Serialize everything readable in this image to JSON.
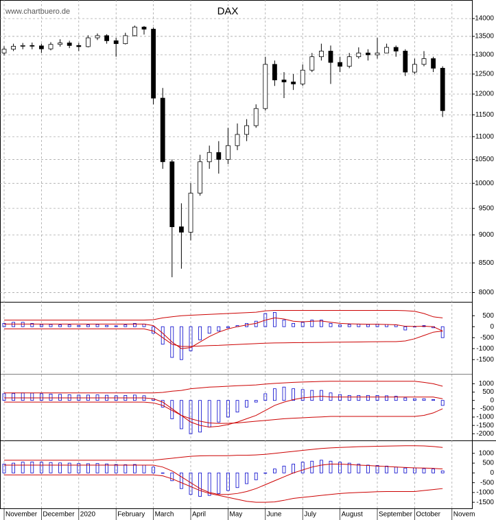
{
  "chart_data": [
    {
      "type": "candlestick",
      "title": "DAX",
      "source": "www.chartbuero.de",
      "log_scale": true,
      "grid": true,
      "up_color": "#ffffff",
      "down_color": "#000000",
      "open": [
        13050,
        13150,
        13230,
        13250,
        13240,
        13160,
        13280,
        13320,
        13250,
        13220,
        13460,
        13520,
        13380,
        13300,
        13520,
        13760,
        13700,
        11900,
        10450,
        9150,
        9050,
        9800,
        10450,
        10650,
        10500,
        10800,
        11050,
        11250,
        11650,
        12750,
        12350,
        12300,
        12250,
        12600,
        12950,
        13100,
        12800,
        12700,
        12950,
        13050,
        13000,
        13050,
        13200,
        13100,
        12550,
        12750,
        12900,
        12650,
        null
      ],
      "high": [
        13230,
        13300,
        13320,
        13330,
        13300,
        13340,
        13420,
        13380,
        13320,
        13530,
        13580,
        13560,
        13460,
        13600,
        13800,
        13790,
        13750,
        12150,
        10500,
        9600,
        10000,
        10600,
        10800,
        10900,
        11200,
        11300,
        11400,
        11750,
        12950,
        12850,
        12550,
        12500,
        12750,
        13050,
        13300,
        13250,
        12950,
        13050,
        13200,
        13150,
        13460,
        13300,
        13250,
        13150,
        12900,
        13100,
        12950,
        12700,
        null
      ],
      "low": [
        12980,
        13100,
        13150,
        13150,
        13050,
        13120,
        13220,
        13180,
        13100,
        13200,
        13400,
        13300,
        12950,
        13280,
        13500,
        13550,
        11750,
        10300,
        8255,
        8400,
        8900,
        9750,
        10300,
        10200,
        10400,
        10700,
        10900,
        11200,
        11600,
        12200,
        11900,
        12100,
        12200,
        12550,
        12850,
        12250,
        12550,
        12650,
        12900,
        12850,
        12900,
        13050,
        12950,
        12450,
        12500,
        12700,
        12550,
        11450,
        null
      ],
      "close": [
        13150,
        13230,
        13250,
        13240,
        13160,
        13280,
        13320,
        13250,
        13220,
        13460,
        13520,
        13380,
        13300,
        13520,
        13760,
        13700,
        11900,
        10450,
        9150,
        9050,
        9800,
        10450,
        10650,
        10500,
        10800,
        11050,
        11250,
        11650,
        12750,
        12350,
        12300,
        12250,
        12600,
        12950,
        13100,
        12800,
        12700,
        12950,
        13050,
        13000,
        13050,
        13200,
        13100,
        12550,
        12750,
        12900,
        12650,
        11600,
        null
      ],
      "ylim": [
        7850,
        14500
      ],
      "yticks": [
        8000,
        8500,
        9000,
        9500,
        10000,
        10500,
        11000,
        11500,
        12000,
        12500,
        13000,
        13500,
        14000
      ]
    },
    {
      "type": "indicator",
      "grid": false,
      "ylim": [
        -2150,
        1100
      ],
      "yticks": [
        500,
        0,
        -500,
        -1000,
        -1500
      ],
      "series": [
        {
          "kind": "bar",
          "color": "#0000cc",
          "values": [
            150,
            200,
            200,
            150,
            100,
            100,
            80,
            80,
            60,
            80,
            100,
            60,
            40,
            80,
            150,
            120,
            -300,
            -800,
            -1400,
            -1500,
            -1100,
            -600,
            -300,
            -200,
            -50,
            50,
            150,
            250,
            600,
            650,
            300,
            150,
            200,
            300,
            300,
            150,
            80,
            100,
            120,
            100,
            120,
            100,
            80,
            -150,
            0,
            50,
            -50,
            -500,
            null
          ]
        },
        {
          "kind": "line",
          "color": "#cc0000",
          "values": [
            300,
            300,
            300,
            300,
            300,
            300,
            300,
            300,
            300,
            300,
            300,
            300,
            300,
            300,
            300,
            300,
            320,
            400,
            450,
            500,
            520,
            540,
            560,
            580,
            600,
            620,
            640,
            660,
            720,
            740,
            740,
            740,
            740,
            740,
            740,
            740,
            740,
            740,
            740,
            740,
            740,
            740,
            740,
            730,
            700,
            600,
            450,
            400,
            null
          ]
        },
        {
          "kind": "line",
          "color": "#cc0000",
          "values": [
            -100,
            -100,
            -100,
            -100,
            -100,
            -100,
            -100,
            -100,
            -100,
            -100,
            -100,
            -100,
            -100,
            -100,
            -100,
            -100,
            -200,
            -500,
            -800,
            -900,
            -900,
            -880,
            -860,
            -850,
            -830,
            -810,
            -790,
            -770,
            -750,
            -740,
            -735,
            -730,
            -725,
            -720,
            -715,
            -710,
            -705,
            -700,
            -695,
            -690,
            -685,
            -680,
            -680,
            -650,
            -550,
            -400,
            -250,
            -200,
            null
          ]
        },
        {
          "kind": "line",
          "color": "#cc0000",
          "values": [
            120,
            120,
            120,
            120,
            120,
            120,
            120,
            120,
            120,
            120,
            120,
            120,
            120,
            120,
            120,
            120,
            50,
            -300,
            -700,
            -1000,
            -950,
            -700,
            -450,
            -250,
            -100,
            0,
            80,
            150,
            300,
            400,
            350,
            250,
            220,
            250,
            260,
            200,
            150,
            130,
            120,
            110,
            110,
            100,
            90,
            20,
            10,
            20,
            0,
            -200,
            null
          ]
        }
      ]
    },
    {
      "type": "indicator",
      "grid": false,
      "ylim": [
        -2400,
        1550
      ],
      "yticks": [
        1000,
        500,
        0,
        -500,
        -1000,
        -1500,
        -2000
      ],
      "series": [
        {
          "kind": "bar",
          "color": "#0000cc",
          "values": [
            400,
            420,
            450,
            440,
            400,
            380,
            360,
            340,
            320,
            320,
            330,
            310,
            280,
            300,
            320,
            280,
            100,
            -400,
            -1100,
            -1700,
            -2000,
            -1900,
            -1600,
            -1300,
            -1000,
            -700,
            -400,
            -100,
            400,
            700,
            800,
            700,
            650,
            600,
            600,
            450,
            350,
            300,
            300,
            300,
            300,
            280,
            250,
            150,
            100,
            100,
            50,
            -300,
            null
          ]
        },
        {
          "kind": "line",
          "color": "#cc0000",
          "values": [
            450,
            450,
            450,
            450,
            450,
            450,
            450,
            450,
            450,
            450,
            450,
            450,
            450,
            450,
            450,
            450,
            450,
            480,
            550,
            600,
            700,
            750,
            800,
            820,
            850,
            880,
            900,
            930,
            980,
            1020,
            1050,
            1080,
            1100,
            1120,
            1140,
            1150,
            1150,
            1150,
            1150,
            1150,
            1150,
            1150,
            1150,
            1150,
            1150,
            1080,
            1000,
            850,
            null
          ]
        },
        {
          "kind": "line",
          "color": "#cc0000",
          "values": [
            -100,
            -100,
            -100,
            -100,
            -100,
            -100,
            -100,
            -100,
            -100,
            -100,
            -100,
            -100,
            -100,
            -100,
            -100,
            -100,
            -150,
            -300,
            -600,
            -900,
            -1100,
            -1250,
            -1350,
            -1380,
            -1370,
            -1350,
            -1300,
            -1250,
            -1200,
            -1150,
            -1100,
            -1070,
            -1040,
            -1010,
            -990,
            -960,
            -960,
            -960,
            -960,
            -960,
            -960,
            -960,
            -960,
            -960,
            -960,
            -900,
            -750,
            -500,
            null
          ]
        },
        {
          "kind": "line",
          "color": "#cc0000",
          "values": [
            150,
            150,
            150,
            150,
            150,
            150,
            150,
            150,
            150,
            150,
            150,
            150,
            150,
            150,
            150,
            150,
            100,
            -100,
            -500,
            -900,
            -1300,
            -1500,
            -1600,
            -1550,
            -1450,
            -1300,
            -1100,
            -900,
            -600,
            -300,
            -100,
            50,
            150,
            200,
            250,
            200,
            200,
            200,
            200,
            200,
            200,
            200,
            200,
            200,
            200,
            200,
            200,
            100,
            null
          ]
        }
      ]
    },
    {
      "type": "indicator",
      "grid": false,
      "ylim": [
        -1810,
        1625
      ],
      "yticks": [
        1000,
        500,
        0,
        -500,
        -1000,
        -1500
      ],
      "categories": [
        "November",
        null,
        null,
        null,
        "December",
        null,
        null,
        null,
        "2020",
        null,
        null,
        null,
        "February",
        null,
        null,
        null,
        "March",
        null,
        null,
        null,
        "April",
        null,
        null,
        null,
        "May",
        null,
        null,
        null,
        "June",
        null,
        null,
        null,
        "July",
        null,
        null,
        null,
        "August",
        null,
        null,
        null,
        "September",
        null,
        null,
        null,
        "October",
        null,
        null,
        null,
        "Novem"
      ],
      "series": [
        {
          "kind": "bar",
          "color": "#0000cc",
          "values": [
            450,
            500,
            550,
            560,
            550,
            530,
            510,
            500,
            480,
            470,
            480,
            460,
            430,
            420,
            430,
            400,
            300,
            0,
            -400,
            -800,
            -1100,
            -1200,
            -1150,
            -1050,
            -900,
            -750,
            -550,
            -350,
            0,
            200,
            350,
            450,
            550,
            600,
            650,
            600,
            550,
            500,
            450,
            400,
            380,
            350,
            300,
            250,
            250,
            220,
            200,
            100,
            null
          ]
        },
        {
          "kind": "line",
          "color": "#cc0000",
          "values": [
            650,
            650,
            650,
            650,
            650,
            650,
            650,
            650,
            650,
            650,
            650,
            650,
            650,
            650,
            650,
            650,
            650,
            700,
            750,
            800,
            850,
            870,
            880,
            880,
            880,
            900,
            900,
            920,
            950,
            1000,
            1050,
            1100,
            1150,
            1200,
            1250,
            1280,
            1300,
            1320,
            1340,
            1350,
            1360,
            1370,
            1380,
            1390,
            1390,
            1380,
            1350,
            1300,
            null
          ]
        },
        {
          "kind": "line",
          "color": "#cc0000",
          "values": [
            -100,
            -100,
            -100,
            -100,
            -100,
            -100,
            -100,
            -100,
            -100,
            -100,
            -100,
            -100,
            -100,
            -100,
            -100,
            -100,
            -100,
            -150,
            -300,
            -500,
            -700,
            -900,
            -1050,
            -1150,
            -1250,
            -1350,
            -1450,
            -1500,
            -1500,
            -1480,
            -1400,
            -1300,
            -1250,
            -1200,
            -1150,
            -1100,
            -1050,
            -1020,
            -1000,
            -980,
            -960,
            -950,
            -950,
            -950,
            -950,
            -900,
            -850,
            -800,
            null
          ]
        },
        {
          "kind": "line",
          "color": "#cc0000",
          "values": [
            400,
            400,
            400,
            400,
            400,
            400,
            400,
            400,
            400,
            400,
            400,
            400,
            400,
            400,
            400,
            400,
            400,
            300,
            100,
            -200,
            -500,
            -800,
            -1000,
            -1100,
            -1100,
            -1050,
            -950,
            -800,
            -600,
            -400,
            -200,
            0,
            150,
            300,
            400,
            450,
            450,
            430,
            400,
            380,
            350,
            330,
            300,
            280,
            260,
            250,
            230,
            200,
            null
          ]
        }
      ]
    }
  ]
}
